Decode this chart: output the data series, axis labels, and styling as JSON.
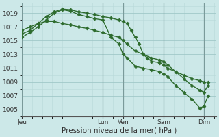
{
  "title": "Pression niveau de la mer( hPa )",
  "bg_color": "#cce8e8",
  "grid_color_minor": "#b8d8d8",
  "grid_color_major": "#a0c8c8",
  "vline_color": "#7a9a9a",
  "line_color": "#2d6b2d",
  "ylim": [
    1004.0,
    1020.5
  ],
  "yticks": [
    1005,
    1007,
    1009,
    1011,
    1013,
    1015,
    1017,
    1019
  ],
  "xlabel": "Pression niveau de la mer( hPa )",
  "day_labels": [
    "Jeu",
    "Lun",
    "Ven",
    "Sam",
    "Dim"
  ],
  "day_x": [
    0,
    10,
    12.5,
    17.5,
    22.5
  ],
  "xlim": [
    0,
    24
  ],
  "vline_x": [
    0,
    10,
    12.5,
    17.5,
    22.5
  ],
  "line1_x": [
    0,
    1,
    2,
    3,
    4,
    5,
    6,
    7,
    8,
    9,
    10,
    11,
    12,
    12.5,
    13,
    13.5,
    14,
    14.5,
    15,
    15.5,
    16,
    17,
    17.5,
    18,
    19,
    20,
    21,
    22,
    22.5,
    23
  ],
  "line1_y": [
    1016.0,
    1016.5,
    1017.5,
    1018.5,
    1019.2,
    1019.6,
    1019.5,
    1019.2,
    1019.0,
    1018.8,
    1018.5,
    1018.3,
    1018.0,
    1017.8,
    1017.5,
    1016.5,
    1015.5,
    1014.5,
    1013.0,
    1012.5,
    1012.0,
    1011.8,
    1011.5,
    1011.0,
    1010.5,
    1010.0,
    1009.5,
    1009.2,
    1009.0,
    1009.0
  ],
  "line2_x": [
    0,
    1,
    2,
    3,
    4,
    5,
    6,
    7,
    8,
    9,
    10,
    11,
    12,
    12.5,
    13,
    14,
    15,
    16,
    17,
    17.5,
    18,
    19,
    20,
    21,
    22,
    22.5,
    23
  ],
  "line2_y": [
    1015.5,
    1016.2,
    1017.0,
    1018.0,
    1019.0,
    1019.5,
    1019.3,
    1018.8,
    1018.5,
    1018.2,
    1018.0,
    1015.5,
    1014.5,
    1013.0,
    1012.5,
    1011.3,
    1011.0,
    1010.8,
    1010.5,
    1010.2,
    1009.8,
    1008.5,
    1007.5,
    1006.5,
    1005.2,
    1005.5,
    1007.0
  ],
  "line3_x": [
    0,
    1,
    2,
    3,
    4,
    5,
    6,
    7,
    8,
    9,
    10,
    11,
    12,
    12.5,
    13,
    14,
    15,
    16,
    17,
    17.5,
    18,
    19,
    20,
    21,
    22,
    22.5,
    23
  ],
  "line3_y": [
    1016.5,
    1017.0,
    1017.5,
    1017.8,
    1017.8,
    1017.5,
    1017.3,
    1017.0,
    1016.8,
    1016.5,
    1016.2,
    1015.8,
    1015.5,
    1015.0,
    1014.5,
    1013.5,
    1013.0,
    1012.5,
    1012.2,
    1012.0,
    1011.5,
    1010.5,
    1009.5,
    1008.5,
    1007.8,
    1007.5,
    1008.5
  ],
  "marker": "D",
  "markersize": 2.5,
  "linewidth": 1.0
}
